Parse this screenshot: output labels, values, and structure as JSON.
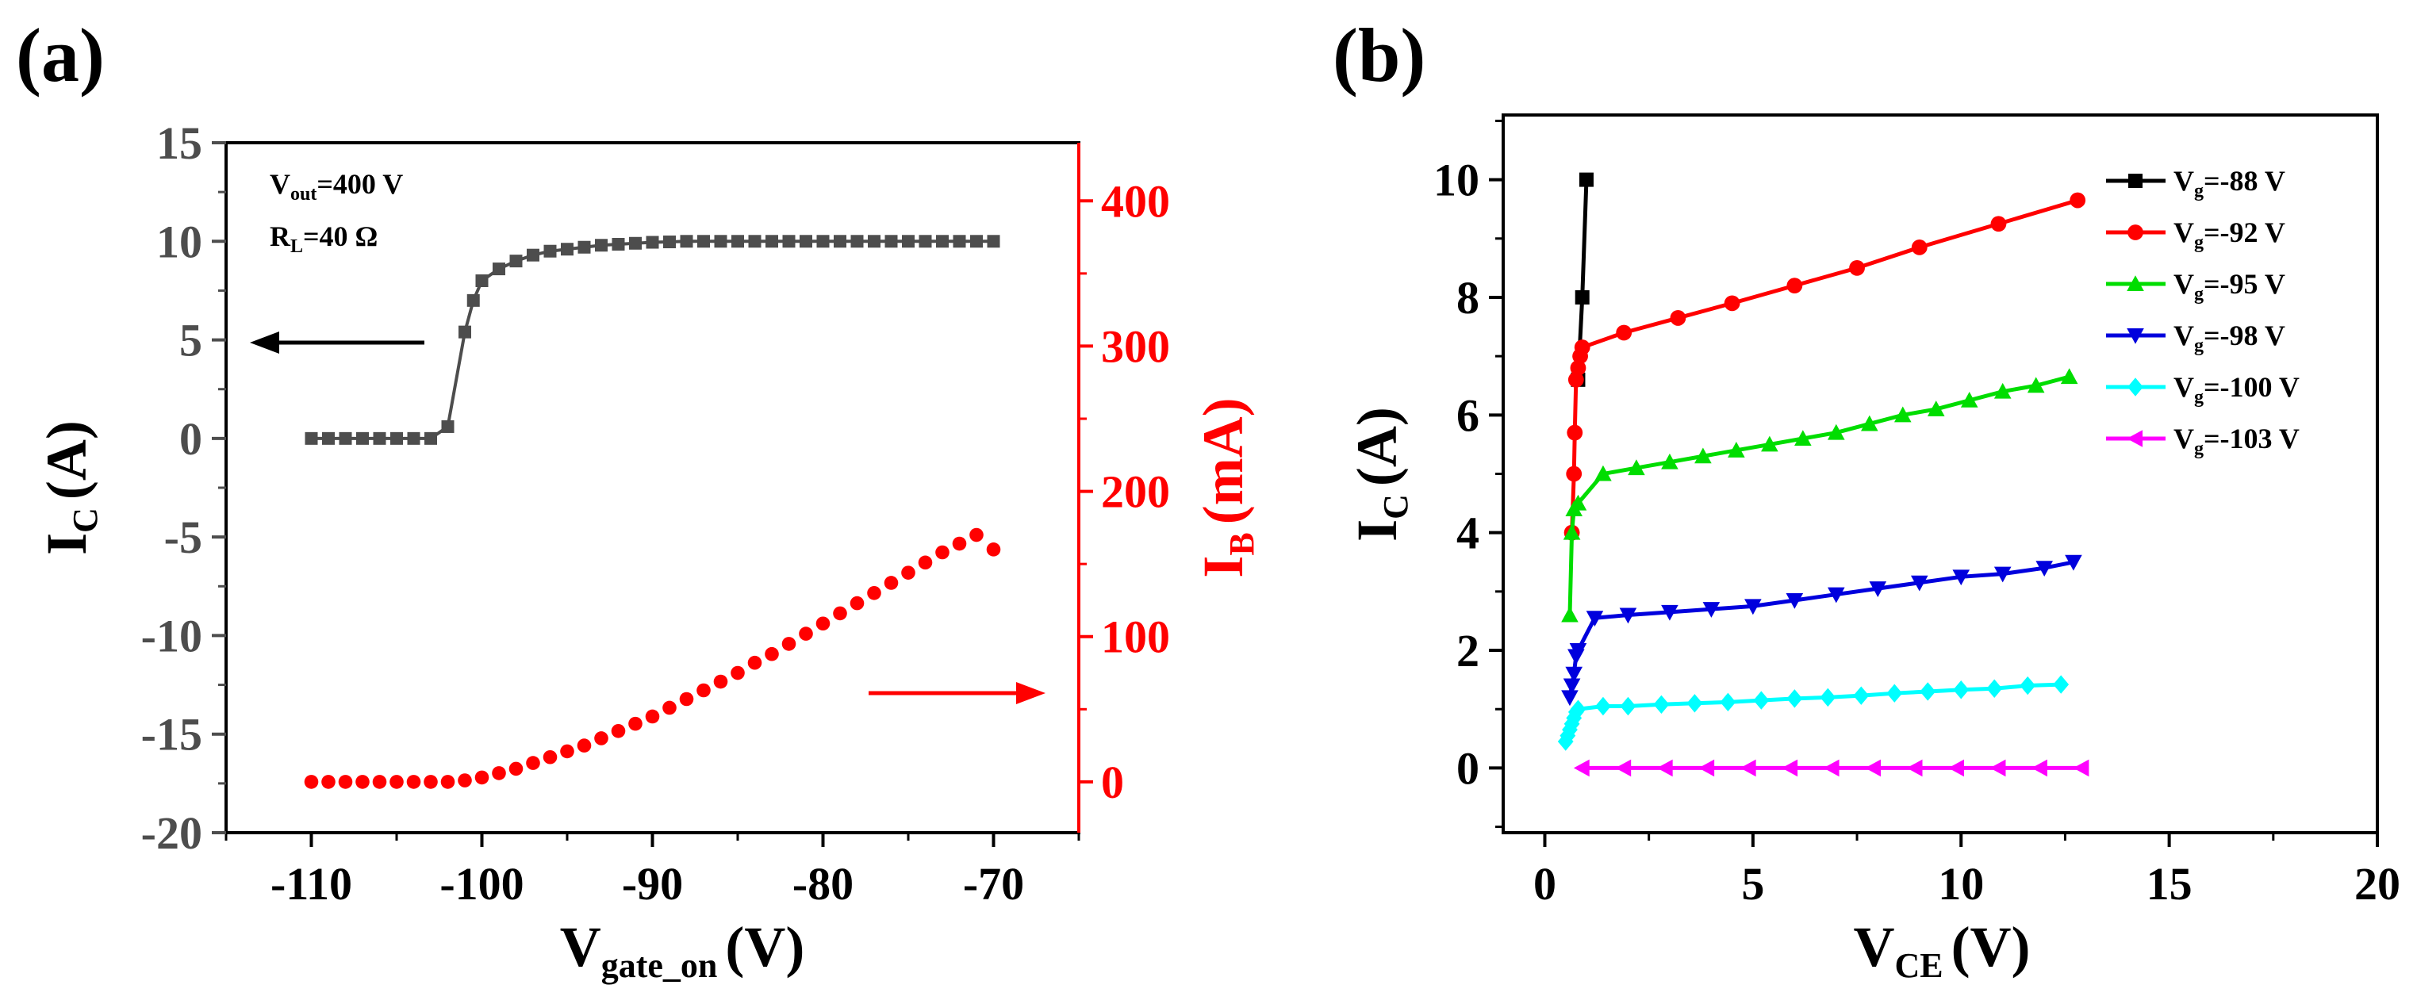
{
  "chart_data": [
    {
      "panel_label": "(a)",
      "type": "scatter",
      "xlabel": {
        "main": "V",
        "sub": "gate_on",
        "units": "(V)"
      },
      "ylabel_left": {
        "main": "I",
        "sub": "C",
        "units": "(A)"
      },
      "ylabel_right": {
        "main": "I",
        "sub": "B",
        "units": "(mA)"
      },
      "xlim": [
        -115,
        -65
      ],
      "ylim_left": [
        -20,
        15
      ],
      "ylim_right": [
        -35,
        440
      ],
      "xticks": [
        -110,
        -100,
        -90,
        -80,
        -70
      ],
      "yticks_left": [
        -20,
        -15,
        -10,
        -5,
        0,
        5,
        10,
        15
      ],
      "yticks_right": [
        0,
        100,
        200,
        300,
        400
      ],
      "annotations": [
        {
          "main": "V",
          "sub": "out",
          "rest": "=400 V"
        },
        {
          "main": "R",
          "sub": "L",
          "rest": "=40 Ω"
        }
      ],
      "series": [
        {
          "name": "I_C",
          "axis": "left",
          "color": "#4d4d4d",
          "marker": "square",
          "x": [
            -110,
            -109,
            -108,
            -107,
            -106,
            -105,
            -104,
            -103,
            -102,
            -101,
            -100.5,
            -100,
            -99,
            -98,
            -97,
            -96,
            -95,
            -94,
            -93,
            -92,
            -91,
            -90,
            -89,
            -88,
            -87,
            -86,
            -85,
            -84,
            -83,
            -82,
            -81,
            -80,
            -79,
            -78,
            -77,
            -76,
            -75,
            -74,
            -73,
            -72,
            -71,
            -70
          ],
          "y": [
            0,
            0,
            0,
            0,
            0,
            0,
            0,
            0,
            0.6,
            5.4,
            7.0,
            8.0,
            8.6,
            9.0,
            9.3,
            9.5,
            9.6,
            9.7,
            9.8,
            9.85,
            9.9,
            9.95,
            9.97,
            10,
            10,
            10,
            10,
            10,
            10,
            10,
            10,
            10,
            10,
            10,
            10,
            10,
            10,
            10,
            10,
            10,
            10,
            10
          ]
        },
        {
          "name": "I_B",
          "axis": "right",
          "color": "#ff0000",
          "marker": "circle",
          "x": [
            -110,
            -109,
            -108,
            -107,
            -106,
            -105,
            -104,
            -103,
            -102,
            -101,
            -100,
            -99,
            -98,
            -97,
            -96,
            -95,
            -94,
            -93,
            -92,
            -91,
            -90,
            -89,
            -88,
            -87,
            -86,
            -85,
            -84,
            -83,
            -82,
            -81,
            -80,
            -79,
            -78,
            -77,
            -76,
            -75,
            -74,
            -73,
            -72,
            -71,
            -70
          ],
          "y": [
            0,
            0,
            0,
            0,
            0,
            0,
            0,
            0,
            0,
            1,
            3,
            6,
            9,
            13,
            17,
            21,
            25,
            30,
            35,
            40,
            45,
            51,
            57,
            63,
            69,
            75,
            82,
            88,
            95,
            102,
            109,
            116,
            123,
            130,
            137,
            144,
            151,
            158,
            164,
            170,
            160
          ]
        }
      ]
    },
    {
      "panel_label": "(b)",
      "type": "line",
      "xlabel": {
        "main": "V",
        "sub": "CE",
        "units": "(V)"
      },
      "ylabel": {
        "main": "I",
        "sub": "C",
        "units": "(A)"
      },
      "xlim": [
        -1,
        20
      ],
      "ylim": [
        -1.1,
        11.1
      ],
      "xticks": [
        0,
        5,
        10,
        15,
        20
      ],
      "yticks": [
        0,
        2,
        4,
        6,
        8,
        10
      ],
      "legend_position": "top-right",
      "series": [
        {
          "label_main": "V",
          "label_sub": "g",
          "label_rest": "=-88 V",
          "color": "#000000",
          "marker": "square",
          "x": [
            0.8,
            0.9,
            1.0
          ],
          "y": [
            6.6,
            8.0,
            10.0
          ]
        },
        {
          "label_main": "V",
          "label_sub": "g",
          "label_rest": "=-92 V",
          "color": "#ff0000",
          "marker": "circle",
          "x": [
            0.65,
            0.7,
            0.72,
            0.75,
            0.8,
            0.85,
            0.9,
            1.9,
            3.2,
            4.5,
            6.0,
            7.5,
            9.0,
            10.9,
            12.8
          ],
          "y": [
            4.0,
            5.0,
            5.7,
            6.6,
            6.8,
            7.0,
            7.15,
            7.4,
            7.65,
            7.9,
            8.2,
            8.5,
            8.85,
            9.25,
            9.65
          ]
        },
        {
          "label_main": "V",
          "label_sub": "g",
          "label_rest": "=-95 V",
          "color": "#00dd00",
          "marker": "triangle-up",
          "x": [
            0.6,
            0.65,
            0.7,
            0.8,
            1.4,
            2.2,
            3.0,
            3.8,
            4.6,
            5.4,
            6.2,
            7.0,
            7.8,
            8.6,
            9.4,
            10.2,
            11.0,
            11.8,
            12.6
          ],
          "y": [
            2.6,
            4.0,
            4.4,
            4.5,
            5.0,
            5.1,
            5.2,
            5.3,
            5.4,
            5.5,
            5.6,
            5.7,
            5.85,
            6.0,
            6.1,
            6.25,
            6.4,
            6.5,
            6.65
          ]
        },
        {
          "label_main": "V",
          "label_sub": "g",
          "label_rest": "=-98 V",
          "color": "#0000dd",
          "marker": "triangle-down",
          "x": [
            0.6,
            0.65,
            0.7,
            0.75,
            0.8,
            1.2,
            2.0,
            3.0,
            4.0,
            5.0,
            6.0,
            7.0,
            8.0,
            9.0,
            10.0,
            11.0,
            12.0,
            12.7
          ],
          "y": [
            1.2,
            1.4,
            1.6,
            1.9,
            2.0,
            2.55,
            2.6,
            2.65,
            2.7,
            2.75,
            2.85,
            2.95,
            3.05,
            3.15,
            3.25,
            3.3,
            3.4,
            3.5
          ]
        },
        {
          "label_main": "V",
          "label_sub": "g",
          "label_rest": "=-100 V",
          "color": "#00ffff",
          "marker": "diamond",
          "x": [
            0.5,
            0.55,
            0.6,
            0.65,
            0.7,
            0.75,
            0.8,
            1.4,
            2.0,
            2.8,
            3.6,
            4.4,
            5.2,
            6.0,
            6.8,
            7.6,
            8.4,
            9.2,
            10.0,
            10.8,
            11.6,
            12.4
          ],
          "y": [
            0.45,
            0.55,
            0.65,
            0.75,
            0.85,
            0.95,
            1.0,
            1.05,
            1.05,
            1.08,
            1.1,
            1.12,
            1.15,
            1.18,
            1.2,
            1.23,
            1.27,
            1.3,
            1.33,
            1.35,
            1.4,
            1.42
          ]
        },
        {
          "label_main": "V",
          "label_sub": "g",
          "label_rest": "=-103 V",
          "color": "#ff00ff",
          "marker": "triangle-left",
          "x": [
            0.9,
            1.9,
            2.9,
            3.9,
            4.9,
            5.9,
            6.9,
            7.9,
            8.9,
            9.9,
            10.9,
            11.9,
            12.9
          ],
          "y": [
            0,
            0,
            0,
            0,
            0,
            0,
            0,
            0,
            0,
            0,
            0,
            0,
            0
          ]
        }
      ]
    }
  ]
}
